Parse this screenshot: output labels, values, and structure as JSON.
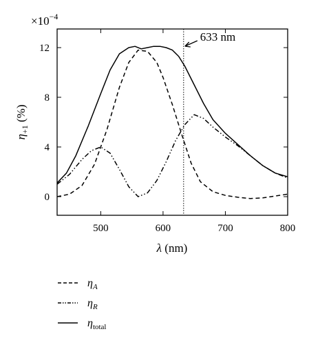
{
  "chart_data": {
    "type": "line",
    "xlabel": "λ (nm)",
    "ylabel": "η+1 (%)",
    "ylabel_parts": {
      "eta": "η",
      "sub": "+1",
      "unit": " (%)"
    },
    "xlabel_parts": {
      "lambda": "λ",
      "unit": " (nm)"
    },
    "y_multiplier": "×10",
    "y_multiplier_exp": "−4",
    "xlim": [
      430,
      800
    ],
    "ylim": [
      -1.5,
      13.5
    ],
    "x_ticks": [
      500,
      600,
      700,
      800
    ],
    "x_tick_labels": [
      "500",
      "600",
      "700",
      "800"
    ],
    "y_ticks": [
      0,
      4,
      8,
      12
    ],
    "y_tick_labels": [
      "0",
      "4",
      "8",
      "12"
    ],
    "grid": false,
    "legend_position": "below",
    "marker": {
      "x": 633,
      "label": "633 nm"
    },
    "series": [
      {
        "name": "ηA",
        "name_parts": {
          "eta": "η",
          "sub": "A"
        },
        "dash": "dashed",
        "x": [
          430,
          450,
          470,
          490,
          510,
          530,
          545,
          560,
          575,
          590,
          600,
          615,
          630,
          645,
          660,
          680,
          700,
          720,
          740,
          760,
          780,
          800
        ],
        "y": [
          0.0,
          0.2,
          0.9,
          2.6,
          5.4,
          8.8,
          10.8,
          11.8,
          11.7,
          10.8,
          9.6,
          7.4,
          5.0,
          2.7,
          1.2,
          0.4,
          0.1,
          -0.05,
          -0.15,
          -0.1,
          0.05,
          0.2
        ]
      },
      {
        "name": "ηR",
        "name_parts": {
          "eta": "η",
          "sub": "R"
        },
        "dash": "dash-dot-dot",
        "x": [
          430,
          450,
          470,
          485,
          500,
          515,
          530,
          545,
          560,
          575,
          590,
          605,
          620,
          635,
          650,
          665,
          680,
          700,
          720,
          740,
          760,
          780,
          800
        ],
        "y": [
          1.0,
          1.8,
          3.0,
          3.7,
          4.0,
          3.5,
          2.2,
          0.8,
          0.0,
          0.3,
          1.3,
          2.8,
          4.5,
          5.8,
          6.6,
          6.3,
          5.6,
          4.8,
          4.1,
          3.3,
          2.5,
          1.9,
          1.5
        ]
      },
      {
        "name": "ηtotal",
        "name_parts": {
          "eta": "η",
          "sub": "total"
        },
        "dash": "solid",
        "x": [
          430,
          445,
          460,
          480,
          500,
          515,
          530,
          545,
          555,
          565,
          575,
          585,
          595,
          605,
          615,
          625,
          635,
          650,
          665,
          680,
          700,
          720,
          740,
          760,
          780,
          800
        ],
        "y": [
          1.1,
          1.9,
          3.3,
          5.7,
          8.3,
          10.2,
          11.5,
          12.0,
          12.1,
          11.9,
          12.0,
          12.1,
          12.1,
          12.0,
          11.8,
          11.3,
          10.5,
          9.0,
          7.5,
          6.2,
          5.1,
          4.2,
          3.3,
          2.5,
          1.9,
          1.6
        ]
      }
    ]
  }
}
